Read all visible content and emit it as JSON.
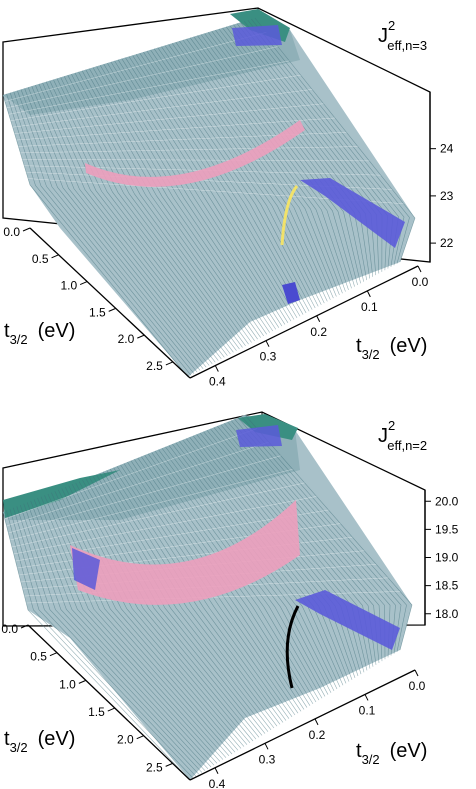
{
  "chart_data": [
    {
      "type": "surface3d",
      "zlabel": {
        "base": "J",
        "sup": "2",
        "sub": "eff,n=3"
      },
      "xlabel": {
        "base": "t",
        "sub": "3/2",
        "unit": "(eV)"
      },
      "ylabel": {
        "base": "t",
        "sub": "3/2",
        "unit": "(eV)"
      },
      "x_ticks": [
        "0.0",
        "0.5",
        "1.0",
        "1.5",
        "2.0",
        "2.5"
      ],
      "y_ticks": [
        "0.0",
        "0.1",
        "0.2",
        "0.3",
        "0.4"
      ],
      "z_ticks": [
        "22",
        "23",
        "24"
      ],
      "xlim": [
        0,
        2.8
      ],
      "ylim": [
        0,
        0.45
      ],
      "zlim": [
        21.6,
        25.2
      ],
      "colors": {
        "surface": "#9fb9c2",
        "edge": "#3f6f7a",
        "high": "#3a9a8c",
        "band": "#e9a0b8",
        "jump": "#5a5ad8"
      }
    },
    {
      "type": "surface3d",
      "zlabel": {
        "base": "J",
        "sup": "2",
        "sub": "eff,n=2"
      },
      "xlabel": {
        "base": "t",
        "sub": "3/2",
        "unit": "(eV)"
      },
      "ylabel": {
        "base": "t",
        "sub": "3/2",
        "unit": "(eV)"
      },
      "x_ticks": [
        "0.0",
        "0.5",
        "1.0",
        "1.5",
        "2.0",
        "2.5"
      ],
      "y_ticks": [
        "0.0",
        "0.1",
        "0.2",
        "0.3",
        "0.4"
      ],
      "z_ticks": [
        "18.0",
        "18.5",
        "19.0",
        "19.5",
        "20.0"
      ],
      "xlim": [
        0,
        2.8
      ],
      "ylim": [
        0,
        0.45
      ],
      "zlim": [
        17.8,
        20.2
      ],
      "colors": {
        "surface": "#9fb9c2",
        "edge": "#3f6f7a",
        "high": "#3a9a8c",
        "band": "#e9a0b8",
        "jump": "#5a5ad8"
      }
    }
  ]
}
